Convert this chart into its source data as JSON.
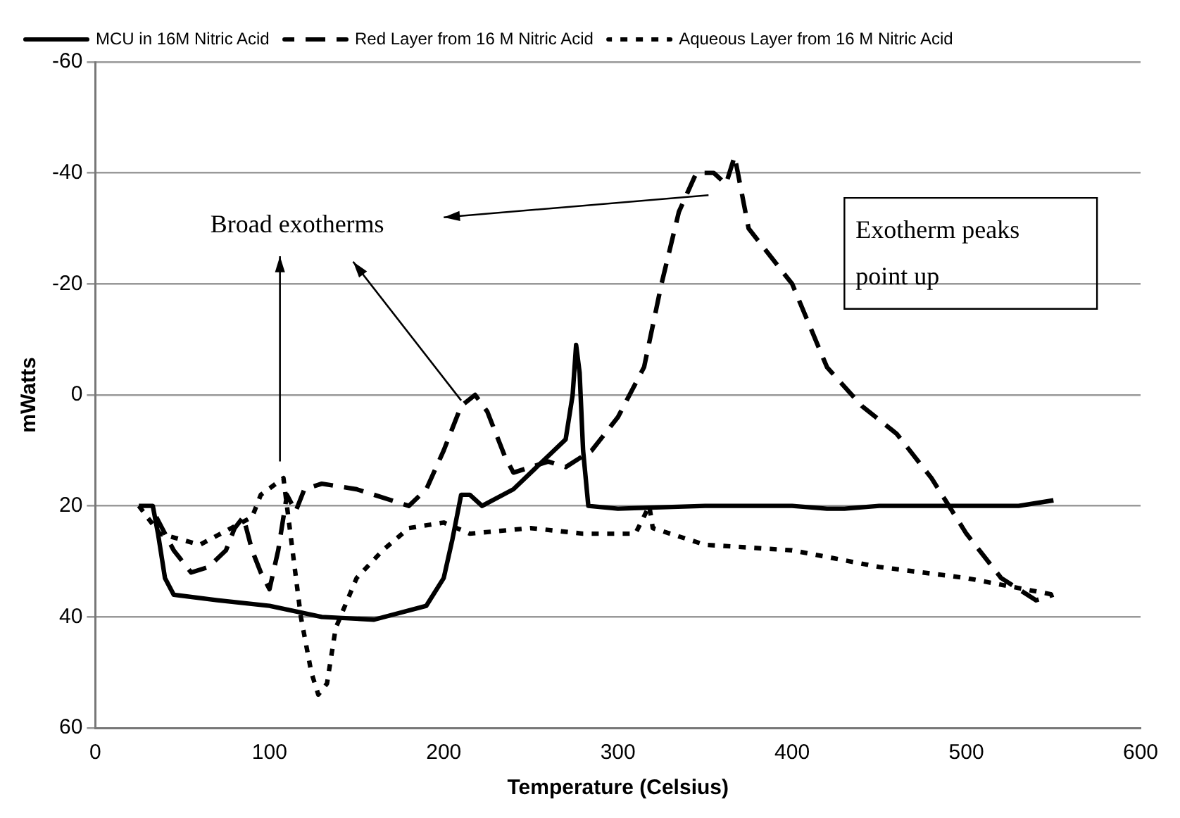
{
  "chart_data": {
    "type": "line",
    "xlabel": "Temperature (Celsius)",
    "ylabel": "mWatts",
    "xlim": [
      0,
      600
    ],
    "xticks": [
      0,
      100,
      200,
      300,
      400,
      500,
      600
    ],
    "ylim": [
      60,
      -60
    ],
    "yticks": [
      60,
      40,
      20,
      0,
      -20,
      -40,
      -60
    ],
    "grid": "y",
    "legend": "top left",
    "marker": "none",
    "series": [
      {
        "name": "MCU in 16M Nitric Acid",
        "color": "#000000",
        "line_style": "solid",
        "x": [
          25,
          33,
          36,
          40,
          45,
          70,
          100,
          130,
          160,
          190,
          200,
          205,
          210,
          215,
          222,
          240,
          260,
          270,
          274,
          276,
          278,
          280,
          283,
          300,
          350,
          400,
          420,
          430,
          450,
          500,
          530,
          550
        ],
        "values": [
          20,
          20,
          25,
          33,
          36,
          37,
          38,
          40,
          40.5,
          38,
          33,
          26,
          18,
          18,
          20,
          17,
          11,
          8,
          0,
          -9,
          -4,
          10,
          20,
          20.5,
          20,
          20,
          20.5,
          20.5,
          20,
          20,
          20,
          19
        ]
      },
      {
        "name": "Red Layer from 16 M Nitric Acid",
        "color": "#000000",
        "line_style": "dashed",
        "x": [
          35,
          45,
          55,
          65,
          75,
          80,
          85,
          90,
          95,
          100,
          105,
          110,
          115,
          120,
          130,
          150,
          170,
          180,
          190,
          200,
          210,
          218,
          225,
          235,
          240,
          250,
          260,
          270,
          285,
          300,
          315,
          325,
          335,
          345,
          355,
          362,
          367,
          375,
          390,
          400,
          420,
          440,
          460,
          480,
          500,
          520,
          540,
          550
        ],
        "values": [
          22,
          28,
          32,
          31,
          28,
          24,
          22,
          28,
          32,
          35,
          28,
          18,
          21,
          17,
          16,
          17,
          19,
          20,
          17,
          10,
          2,
          0,
          3,
          11,
          14,
          13,
          12,
          13,
          10,
          4,
          -5,
          -20,
          -33,
          -40,
          -40,
          -38,
          -43,
          -30,
          -24,
          -20,
          -5,
          2,
          7,
          15,
          25,
          33,
          37,
          36
        ]
      },
      {
        "name": "Aqueous Layer from 16 M Nitric Acid",
        "color": "#000000",
        "line_style": "dotted",
        "x": [
          25,
          37,
          60,
          90,
          95,
          108,
          112,
          118,
          124,
          128,
          133,
          138,
          150,
          165,
          180,
          200,
          215,
          250,
          280,
          310,
          318,
          320,
          350,
          400,
          450,
          500,
          550
        ],
        "values": [
          20,
          25,
          27,
          22,
          18,
          15,
          25,
          40,
          50,
          54,
          52,
          42,
          33,
          28,
          24,
          23,
          25,
          24,
          25,
          25,
          20,
          24,
          27,
          28,
          31,
          33,
          36
        ]
      }
    ],
    "annotations": [
      "Broad exotherms",
      "Exotherm peaks point up"
    ]
  }
}
